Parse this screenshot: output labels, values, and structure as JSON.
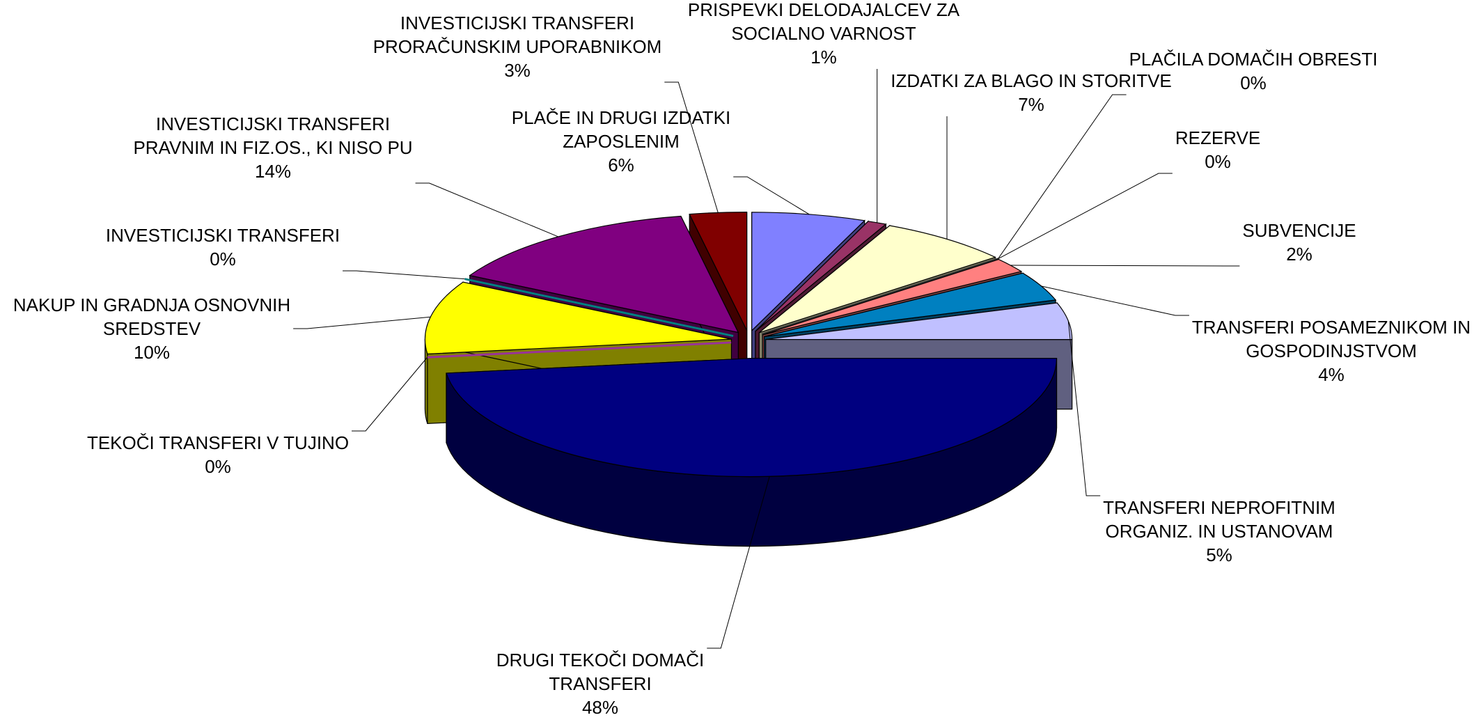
{
  "chart_data": {
    "type": "pie3d",
    "categories": [
      [
        "PLAČE IN DRUGI IZDATKI",
        "ZAPOSLENIM"
      ],
      [
        "PRISPEVKI DELODAJALCEV ZA",
        "SOCIALNO VARNOST"
      ],
      [
        "IZDATKI ZA BLAGO IN STORITVE"
      ],
      [
        "PLAČILA DOMAČIH OBRESTI"
      ],
      [
        "REZERVE"
      ],
      [
        "SUBVENCIJE"
      ],
      [
        "TRANSFERI POSAMEZNIKOM IN",
        "GOSPODINJSTVOM"
      ],
      [
        "TRANSFERI NEPROFITNIM",
        "ORGANIZ. IN USTANOVAM"
      ],
      [
        "DRUGI TEKOČI DOMAČI",
        "TRANSFERI"
      ],
      [
        "TEKOČI TRANSFERI V TUJINO"
      ],
      [
        "NAKUP IN GRADNJA OSNOVNIH",
        "SREDSTEV"
      ],
      [
        "INVESTICIJSKI TRANSFERI"
      ],
      [
        "INVESTICIJSKI TRANSFERI",
        "PRAVNIM IN FIZ.OS., KI NISO PU"
      ],
      [
        "INVESTICIJSKI TRANSFERI",
        "PRORAČUNSKIM UPORABNIKOM"
      ]
    ],
    "values": [
      6,
      1,
      7,
      0,
      0,
      2,
      4,
      5,
      48,
      0,
      10,
      0,
      14,
      3
    ],
    "value_labels": [
      "6%",
      "1%",
      "7%",
      "0%",
      "0%",
      "2%",
      "4%",
      "5%",
      "48%",
      "0%",
      "10%",
      "0%",
      "14%",
      "3%"
    ],
    "colors": [
      "#8080ff",
      "#993366",
      "#ffffcc",
      "#999966",
      "#333333",
      "#ff8080",
      "#0080c0",
      "#c0c0ff",
      "#000080",
      "#993399",
      "#ffff00",
      "#008080",
      "#800080",
      "#800000"
    ]
  }
}
